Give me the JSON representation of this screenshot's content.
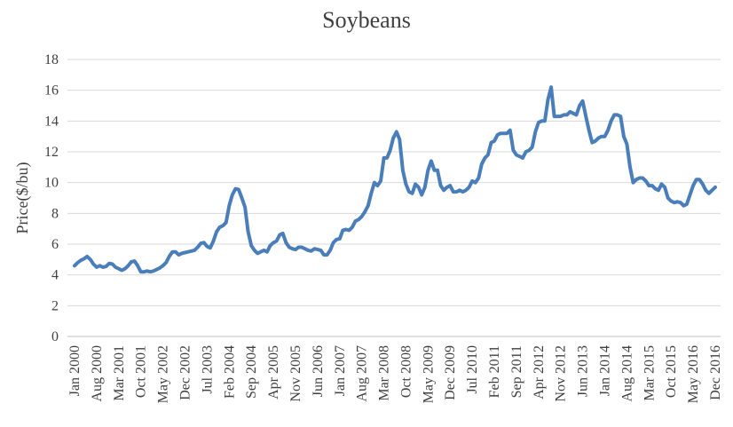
{
  "chart_data": {
    "type": "line",
    "title": "Soybeans",
    "y_label": "Price($/bu)",
    "categories": [
      "Jan 2000",
      null,
      null,
      null,
      null,
      null,
      null,
      "Aug 2000",
      null,
      null,
      null,
      null,
      null,
      null,
      "Mar 2001",
      null,
      null,
      null,
      null,
      null,
      null,
      "Oct 2001",
      null,
      null,
      null,
      null,
      null,
      null,
      "May 2002",
      null,
      null,
      null,
      null,
      null,
      null,
      "Dec 2002",
      null,
      null,
      null,
      null,
      null,
      null,
      "Jul 2003",
      null,
      null,
      null,
      null,
      null,
      null,
      "Feb 2004",
      null,
      null,
      null,
      null,
      null,
      null,
      "Sep 2004",
      null,
      null,
      null,
      null,
      null,
      null,
      "Apr 2005",
      null,
      null,
      null,
      null,
      null,
      null,
      "Nov 2005",
      null,
      null,
      null,
      null,
      null,
      null,
      "Jun 2006",
      null,
      null,
      null,
      null,
      null,
      null,
      "Jan 2007",
      null,
      null,
      null,
      null,
      null,
      null,
      "Aug 2007",
      null,
      null,
      null,
      null,
      null,
      null,
      "Mar 2008",
      null,
      null,
      null,
      null,
      null,
      null,
      "Oct 2008",
      null,
      null,
      null,
      null,
      null,
      null,
      "May 2009",
      null,
      null,
      null,
      null,
      null,
      null,
      "Dec 2009",
      null,
      null,
      null,
      null,
      null,
      null,
      "Jul 2010",
      null,
      null,
      null,
      null,
      null,
      null,
      "Feb 2011",
      null,
      null,
      null,
      null,
      null,
      null,
      "Sep 2011",
      null,
      null,
      null,
      null,
      null,
      null,
      "Apr 2012",
      null,
      null,
      null,
      null,
      null,
      null,
      "Nov 2012",
      null,
      null,
      null,
      null,
      null,
      null,
      "Jun 2013",
      null,
      null,
      null,
      null,
      null,
      null,
      "Jan 2014",
      null,
      null,
      null,
      null,
      null,
      null,
      "Aug 2014",
      null,
      null,
      null,
      null,
      null,
      null,
      "Mar 2015",
      null,
      null,
      null,
      null,
      null,
      null,
      "Oct 2015",
      null,
      null,
      null,
      null,
      null,
      null,
      "May 2016",
      null,
      null,
      null,
      null,
      null,
      null,
      "Dec 2016"
    ],
    "values": [
      4.6,
      4.8,
      4.95,
      5.05,
      5.2,
      5.0,
      4.7,
      4.5,
      4.6,
      4.5,
      4.55,
      4.75,
      4.7,
      4.5,
      4.4,
      4.3,
      4.4,
      4.6,
      4.85,
      4.9,
      4.6,
      4.2,
      4.2,
      4.25,
      4.2,
      4.25,
      4.35,
      4.45,
      4.6,
      4.8,
      5.2,
      5.5,
      5.5,
      5.3,
      5.4,
      5.45,
      5.5,
      5.55,
      5.6,
      5.8,
      6.05,
      6.1,
      5.85,
      5.75,
      6.2,
      6.8,
      7.1,
      7.2,
      7.4,
      8.5,
      9.2,
      9.6,
      9.55,
      9.0,
      8.4,
      6.8,
      5.9,
      5.6,
      5.4,
      5.5,
      5.6,
      5.5,
      5.9,
      6.1,
      6.2,
      6.6,
      6.7,
      6.1,
      5.8,
      5.7,
      5.65,
      5.8,
      5.8,
      5.7,
      5.6,
      5.55,
      5.7,
      5.65,
      5.6,
      5.3,
      5.3,
      5.6,
      6.1,
      6.3,
      6.35,
      6.9,
      6.95,
      6.9,
      7.1,
      7.5,
      7.6,
      7.8,
      8.1,
      8.5,
      9.3,
      10.0,
      9.8,
      10.1,
      11.6,
      11.6,
      12.1,
      12.9,
      13.3,
      12.8,
      10.8,
      9.9,
      9.4,
      9.3,
      9.9,
      9.7,
      9.2,
      9.7,
      10.8,
      11.4,
      10.8,
      10.8,
      9.8,
      9.5,
      9.7,
      9.8,
      9.4,
      9.4,
      9.5,
      9.4,
      9.5,
      9.7,
      10.1,
      10.0,
      10.3,
      11.2,
      11.6,
      11.8,
      12.6,
      12.7,
      13.1,
      13.2,
      13.2,
      13.2,
      13.4,
      12.1,
      11.8,
      11.7,
      11.6,
      12.0,
      12.1,
      12.3,
      13.3,
      13.9,
      14.0,
      14.0,
      15.4,
      16.2,
      14.3,
      14.3,
      14.3,
      14.4,
      14.4,
      14.6,
      14.5,
      14.4,
      15.0,
      15.3,
      14.3,
      13.4,
      12.6,
      12.7,
      12.9,
      13.0,
      13.0,
      13.4,
      14.0,
      14.4,
      14.4,
      14.3,
      13.0,
      12.5,
      11.0,
      10.0,
      10.2,
      10.3,
      10.3,
      10.1,
      9.8,
      9.8,
      9.6,
      9.5,
      9.9,
      9.7,
      9.0,
      8.8,
      8.7,
      8.75,
      8.7,
      8.5,
      8.6,
      9.2,
      9.8,
      10.2,
      10.2,
      9.9,
      9.5,
      9.3,
      9.5,
      9.7
    ],
    "color": "#4a7ebb",
    "ylim": [
      0,
      18
    ],
    "yticks": [
      0,
      2,
      4,
      6,
      8,
      10,
      12,
      14,
      16,
      18
    ],
    "grid": true
  }
}
